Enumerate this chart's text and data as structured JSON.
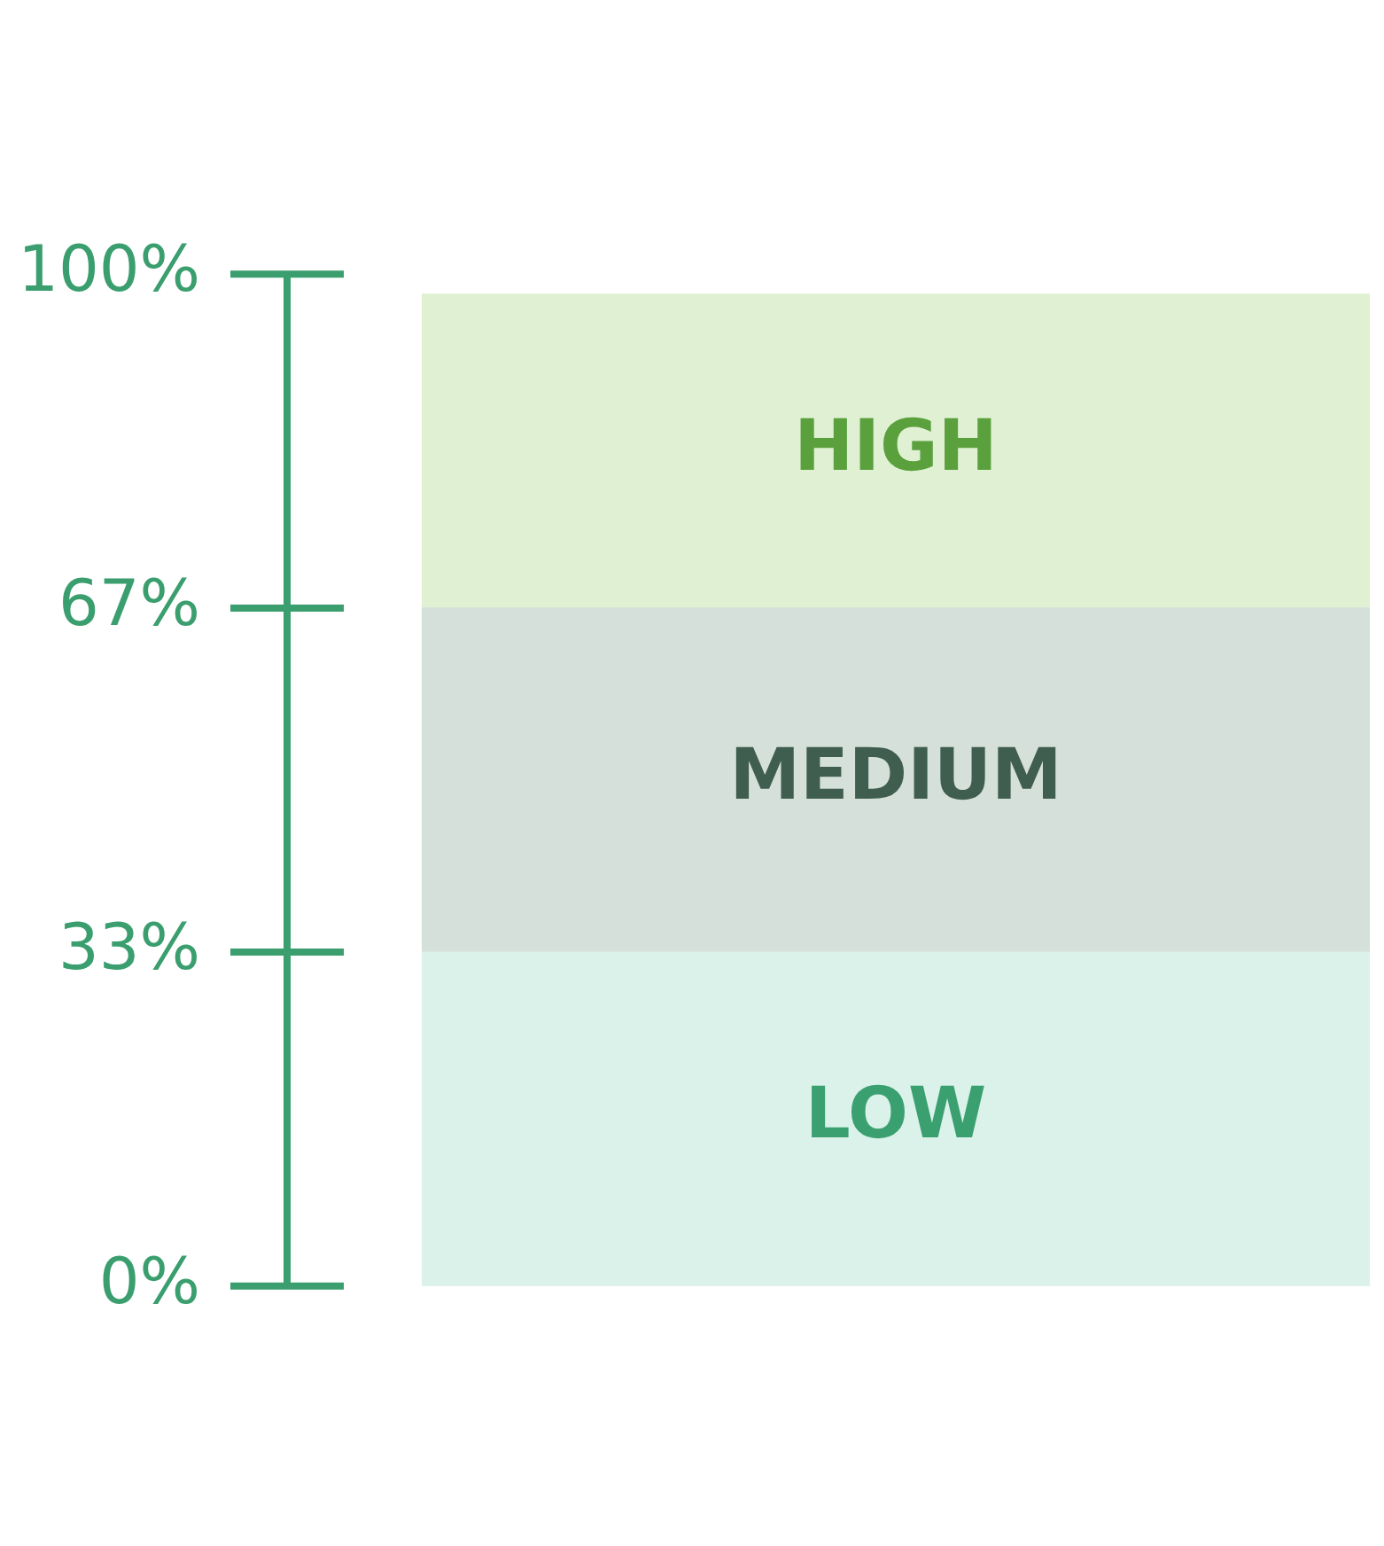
{
  "chart_data": {
    "type": "bar",
    "stacked": true,
    "categories": [
      null
    ],
    "series": [
      {
        "name": "LOW",
        "color": "#daf2ea",
        "values": [
          33
        ]
      },
      {
        "name": "MEDIUM",
        "color": "#d6e0db",
        "values": [
          34
        ]
      },
      {
        "name": "HIGH",
        "color": "#dff0d3",
        "values": [
          31
        ]
      }
    ],
    "ylim": [
      0,
      100
    ],
    "yticks": [
      {
        "value": 0,
        "label": "0%"
      },
      {
        "value": 33,
        "label": "33%"
      },
      {
        "value": 67,
        "label": "67%"
      },
      {
        "value": 100,
        "label": "100%"
      }
    ],
    "tick_labels": "y",
    "grid": false,
    "legend": false
  }
}
